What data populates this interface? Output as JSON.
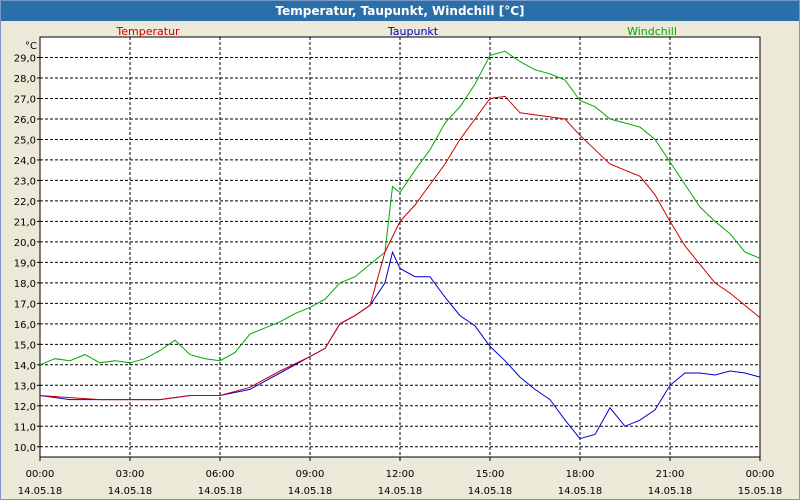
{
  "window": {
    "title": "Temperatur, Taupunkt, Windchill [°C]"
  },
  "colors": {
    "temperatur": "#cc0000",
    "taupunkt": "#0000cc",
    "windchill": "#00aa00",
    "background": "#ece9d8",
    "titlebar": "#2b6fa8"
  },
  "chart_data": {
    "type": "line",
    "ylabel": "°C",
    "ylim": [
      9.5,
      30.0
    ],
    "xlim": [
      "2018-05-14 00:00",
      "2018-05-15 00:00"
    ],
    "grid": true,
    "legend_placement": "top",
    "y_ticks": [
      "10,0",
      "11,0",
      "12,0",
      "13,0",
      "14,0",
      "15,0",
      "16,0",
      "17,0",
      "18,0",
      "19,0",
      "20,0",
      "21,0",
      "22,0",
      "23,0",
      "24,0",
      "25,0",
      "26,0",
      "27,0",
      "28,0",
      "29,0"
    ],
    "x_ticks": [
      {
        "time": "00:00",
        "date": "14.05.18"
      },
      {
        "time": "03:00",
        "date": "14.05.18"
      },
      {
        "time": "06:00",
        "date": "14.05.18"
      },
      {
        "time": "09:00",
        "date": "14.05.18"
      },
      {
        "time": "12:00",
        "date": "14.05.18"
      },
      {
        "time": "15:00",
        "date": "14.05.18"
      },
      {
        "time": "18:00",
        "date": "14.05.18"
      },
      {
        "time": "21:00",
        "date": "14.05.18"
      },
      {
        "time": "00:00",
        "date": "15.05.18"
      }
    ],
    "series": [
      {
        "name": "Temperatur",
        "x": [
          "00:00",
          "01:00",
          "02:00",
          "03:00",
          "04:00",
          "05:00",
          "06:00",
          "07:00",
          "08:00",
          "09:00",
          "09:30",
          "10:00",
          "10:30",
          "11:00",
          "11:30",
          "12:00",
          "12:30",
          "13:00",
          "13:30",
          "14:00",
          "14:30",
          "15:00",
          "15:30",
          "16:00",
          "16:30",
          "17:00",
          "17:30",
          "18:00",
          "18:30",
          "19:00",
          "19:30",
          "20:00",
          "20:30",
          "21:00",
          "21:30",
          "22:00",
          "22:30",
          "23:00",
          "23:30",
          "24:00"
        ],
        "values": [
          12.5,
          12.4,
          12.3,
          12.3,
          12.3,
          12.5,
          12.5,
          12.9,
          13.7,
          14.4,
          14.8,
          16.0,
          16.4,
          16.9,
          19.5,
          21.0,
          21.8,
          22.8,
          23.8,
          25.0,
          26.0,
          27.0,
          27.1,
          26.3,
          26.2,
          26.1,
          26.0,
          25.2,
          24.5,
          23.8,
          23.5,
          23.2,
          22.3,
          21.0,
          19.8,
          18.9,
          18.0,
          17.5,
          16.9,
          16.3
        ]
      },
      {
        "name": "Taupunkt",
        "x": [
          "00:00",
          "01:00",
          "02:00",
          "03:00",
          "04:00",
          "05:00",
          "06:00",
          "07:00",
          "08:00",
          "09:00",
          "09:30",
          "10:00",
          "10:30",
          "11:00",
          "11:30",
          "11:45",
          "12:00",
          "12:30",
          "13:00",
          "13:30",
          "14:00",
          "14:30",
          "15:00",
          "15:30",
          "16:00",
          "16:30",
          "17:00",
          "17:30",
          "18:00",
          "18:30",
          "19:00",
          "19:30",
          "20:00",
          "20:30",
          "21:00",
          "21:30",
          "22:00",
          "22:30",
          "23:00",
          "23:30",
          "24:00"
        ],
        "values": [
          12.5,
          12.3,
          12.3,
          12.3,
          12.3,
          12.5,
          12.5,
          12.8,
          13.6,
          14.4,
          14.8,
          16.0,
          16.4,
          16.9,
          18.0,
          19.5,
          18.7,
          18.3,
          18.3,
          17.3,
          16.4,
          15.9,
          14.9,
          14.2,
          13.4,
          12.8,
          12.3,
          11.3,
          10.4,
          10.6,
          11.9,
          11.0,
          11.3,
          11.8,
          13.0,
          13.6,
          13.6,
          13.5,
          13.7,
          13.6,
          13.4
        ]
      },
      {
        "name": "Windchill",
        "x": [
          "00:00",
          "00:30",
          "01:00",
          "01:30",
          "02:00",
          "02:30",
          "03:00",
          "03:30",
          "04:00",
          "04:30",
          "05:00",
          "05:30",
          "06:00",
          "06:30",
          "07:00",
          "07:30",
          "08:00",
          "08:30",
          "09:00",
          "09:30",
          "10:00",
          "10:30",
          "11:00",
          "11:30",
          "11:45",
          "12:00",
          "12:30",
          "13:00",
          "13:30",
          "14:00",
          "14:30",
          "15:00",
          "15:30",
          "16:00",
          "16:30",
          "17:00",
          "17:30",
          "18:00",
          "18:30",
          "19:00",
          "19:30",
          "20:00",
          "20:30",
          "21:00",
          "21:30",
          "22:00",
          "22:30",
          "23:00",
          "23:30",
          "24:00"
        ],
        "values": [
          14.0,
          14.3,
          14.2,
          14.5,
          14.1,
          14.2,
          14.1,
          14.3,
          14.7,
          15.2,
          14.5,
          14.3,
          14.2,
          14.6,
          15.5,
          15.8,
          16.1,
          16.5,
          16.8,
          17.2,
          18.0,
          18.3,
          18.9,
          19.5,
          22.7,
          22.4,
          23.5,
          24.5,
          25.8,
          26.6,
          27.7,
          29.1,
          29.3,
          28.8,
          28.4,
          28.2,
          27.9,
          26.9,
          26.6,
          26.0,
          25.8,
          25.6,
          25.0,
          23.9,
          22.8,
          21.7,
          21.0,
          20.4,
          19.5,
          19.2
        ]
      }
    ]
  }
}
